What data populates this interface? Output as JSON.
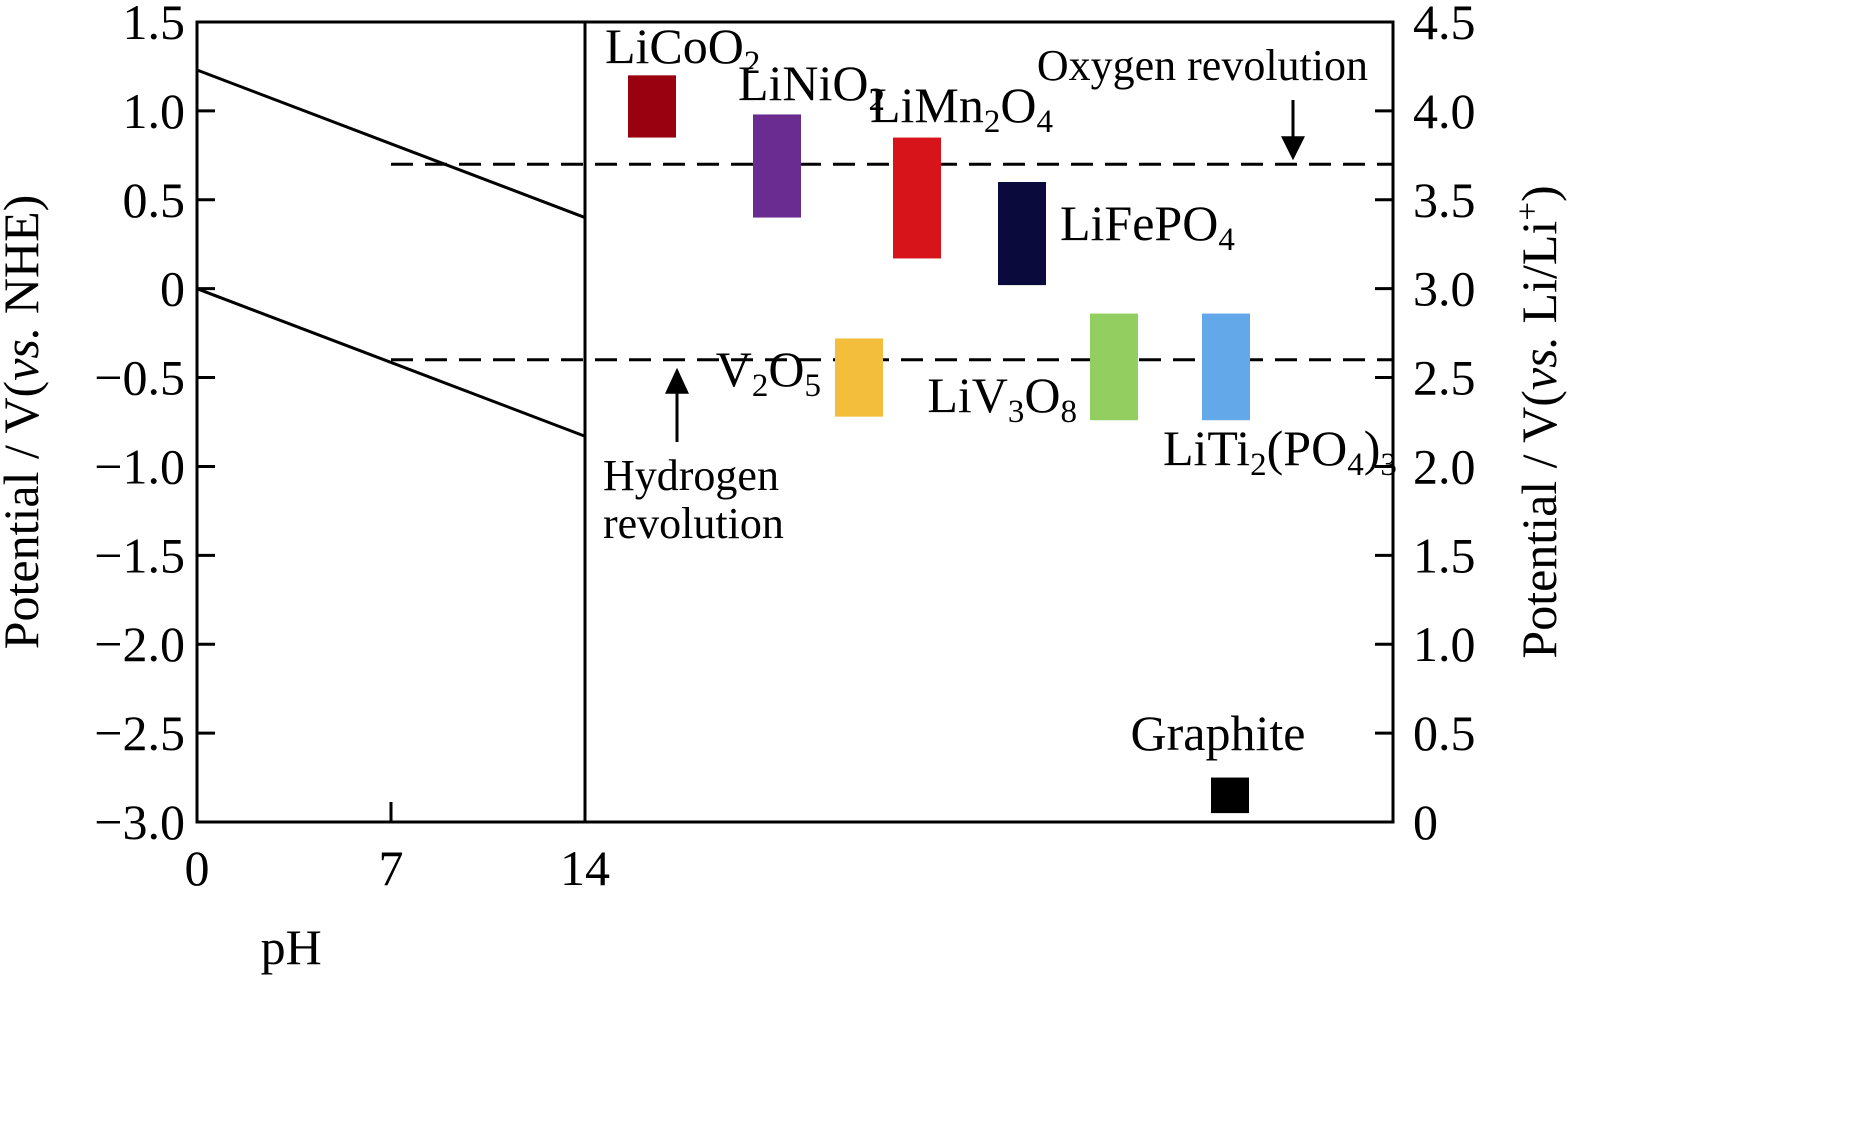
{
  "chart_data": {
    "type": "bar",
    "title": "",
    "left_axis": {
      "label": "Potential / V(vs. NHE)",
      "label_parts": [
        "Potential / V(",
        "vs.",
        " NHE)"
      ],
      "ylim": [
        -3.0,
        1.5
      ],
      "ticks": [
        1.5,
        1.0,
        0.5,
        0,
        -0.5,
        -1.0,
        -1.5,
        -2.0,
        -2.5,
        -3.0
      ],
      "tick_labels": [
        "1.5",
        "1.0",
        "0.5",
        "0",
        "−0.5",
        "−1.0",
        "−1.5",
        "−2.0",
        "−2.5",
        "−3.0"
      ]
    },
    "right_axis": {
      "label": "Potential / V(vs. Li/Li+)",
      "label_parts": [
        "Potential / V(",
        "vs.",
        " Li/Li",
        "+",
        ")"
      ],
      "ylim": [
        0,
        4.5
      ],
      "ticks": [
        4.5,
        4.0,
        3.5,
        3.0,
        2.5,
        2.0,
        1.5,
        1.0,
        0.5,
        0
      ],
      "tick_labels": [
        "4.5",
        "4.0",
        "3.5",
        "3.0",
        "2.5",
        "2.0",
        "1.5",
        "1.0",
        "0.5",
        "0"
      ]
    },
    "x_axis": {
      "label": "pH",
      "xlim": [
        0,
        14
      ],
      "ticks": [
        0,
        7,
        14
      ],
      "tick_labels": [
        "0",
        "7",
        "14"
      ]
    },
    "water_lines": [
      {
        "x": [
          0,
          14
        ],
        "y": [
          1.23,
          0.4
        ]
      },
      {
        "x": [
          0,
          14
        ],
        "y": [
          0.0,
          -0.83
        ]
      }
    ],
    "reference_lines": [
      {
        "label": "Oxygen revolution",
        "y_li": 3.7
      },
      {
        "label": "Hydrogen revolution",
        "label_lines": [
          "Hydrogen",
          "revolution"
        ],
        "y_li": 2.6
      }
    ],
    "materials": [
      {
        "name": "LiCoO2",
        "label_parts": [
          "LiCoO",
          "2",
          ""
        ],
        "low": 3.85,
        "high": 4.2,
        "color": "#990010"
      },
      {
        "name": "LiNiO2",
        "label_parts": [
          "LiNiO",
          "2",
          ""
        ],
        "low": 3.4,
        "high": 3.98,
        "color": "#6a2c91"
      },
      {
        "name": "LiMn2O4",
        "label_parts": [
          "LiMn",
          "2",
          "O",
          "4",
          ""
        ],
        "low": 3.17,
        "high": 3.85,
        "color": "#d7141a"
      },
      {
        "name": "LiFePO4",
        "label_parts": [
          "LiFePO",
          "4",
          ""
        ],
        "low": 3.02,
        "high": 3.6,
        "color": "#0a0a3c"
      },
      {
        "name": "V2O5",
        "label_parts": [
          "V",
          "2",
          "O",
          "5",
          ""
        ],
        "low": 2.28,
        "high": 2.72,
        "color": "#f2be3c"
      },
      {
        "name": "LiV3O8",
        "label_parts": [
          "LiV",
          "3",
          "O",
          "8",
          ""
        ],
        "low": 2.26,
        "high": 2.86,
        "color": "#92cf60"
      },
      {
        "name": "LiTi2(PO4)3",
        "label_parts": [
          "LiTi",
          "2",
          "(PO",
          "4",
          ")",
          "3",
          ""
        ],
        "low": 2.26,
        "high": 2.86,
        "color": "#63a9ea"
      },
      {
        "name": "Graphite",
        "label_parts": [
          "Graphite"
        ],
        "low": 0.05,
        "high": 0.25,
        "color": "#000000"
      }
    ]
  }
}
